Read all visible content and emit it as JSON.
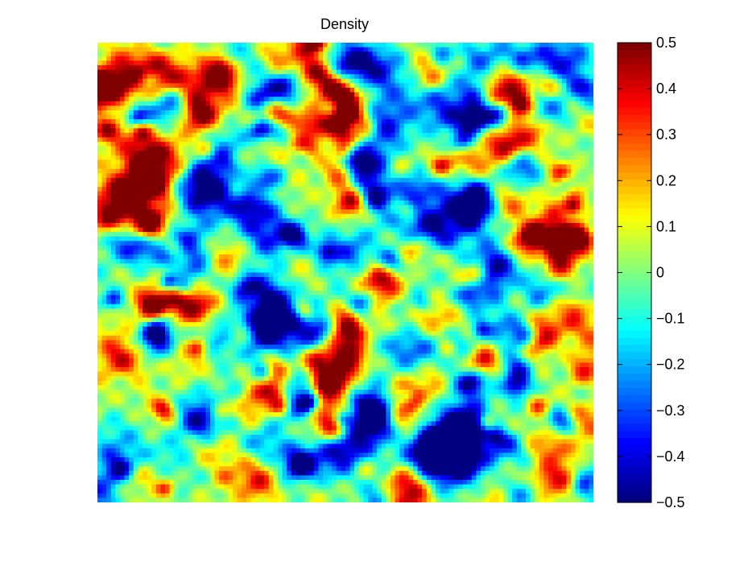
{
  "chart_data": {
    "type": "heatmap",
    "title": "Density",
    "xlabel": "",
    "ylabel": "",
    "x_ticks_visible": false,
    "y_ticks_visible": false,
    "colormap": "jet",
    "colorbar": {
      "range": [
        -0.5,
        0.5
      ],
      "ticks": [
        0.5,
        0.4,
        0.3,
        0.2,
        0.1,
        0,
        -0.1,
        -0.2,
        -0.3,
        -0.4,
        -0.5
      ],
      "tick_labels": [
        "0.5",
        "0.4",
        "0.3",
        "0.2",
        "0.1",
        "0",
        "−0.1",
        "−0.2",
        "−0.3",
        "−0.4",
        "−0.5"
      ],
      "placement": "right"
    },
    "field_description": "random density fluctuations, values mostly between -0.45 and 0.45",
    "field_mean": 0,
    "colors": {
      "dark_blue": "#00008f",
      "blue": "#0050ff",
      "light_blue": "#6fb7ff",
      "cyan": "#9ff2e2",
      "yellow_green": "#d7f07a",
      "yellow": "#f4f23c",
      "orange": "#e89a2e",
      "red": "#c42a1b",
      "dark_red": "#7a0a0a"
    }
  }
}
